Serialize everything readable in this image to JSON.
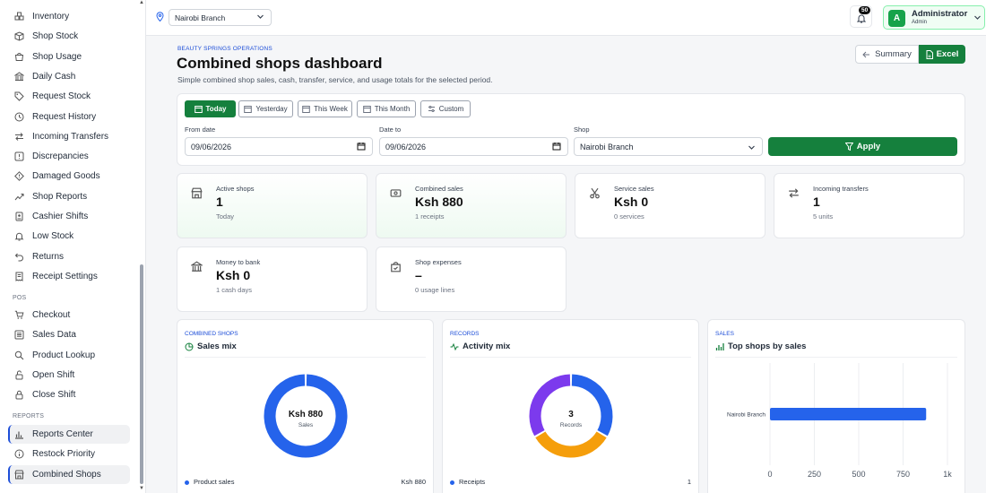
{
  "sidebar": {
    "items": [
      {
        "label": "Inventory",
        "icon": "boxes-icon",
        "name": "sidebar-item-inventory"
      },
      {
        "label": "Shop Stock",
        "icon": "box-icon",
        "name": "sidebar-item-shop-stock"
      },
      {
        "label": "Shop Usage",
        "icon": "bag-icon",
        "name": "sidebar-item-shop-usage"
      },
      {
        "label": "Daily Cash",
        "icon": "bank-icon",
        "name": "sidebar-item-daily-cash"
      },
      {
        "label": "Request Stock",
        "icon": "tag-icon",
        "name": "sidebar-item-request-stock"
      },
      {
        "label": "Request History",
        "icon": "clock-icon",
        "name": "sidebar-item-request-history"
      },
      {
        "label": "Incoming Transfers",
        "icon": "transfer-in-icon",
        "name": "sidebar-item-incoming-transfers"
      },
      {
        "label": "Discrepancies",
        "icon": "alert-icon",
        "name": "sidebar-item-discrepancies"
      },
      {
        "label": "Damaged Goods",
        "icon": "diamond-alert-icon",
        "name": "sidebar-item-damaged-goods"
      },
      {
        "label": "Shop Reports",
        "icon": "trend-icon",
        "name": "sidebar-item-shop-reports"
      },
      {
        "label": "Cashier Shifts",
        "icon": "id-badge-icon",
        "name": "sidebar-item-cashier-shifts"
      },
      {
        "label": "Low Stock",
        "icon": "bell-icon",
        "name": "sidebar-item-low-stock"
      },
      {
        "label": "Returns",
        "icon": "return-icon",
        "name": "sidebar-item-returns"
      },
      {
        "label": "Receipt Settings",
        "icon": "receipt-icon",
        "name": "sidebar-item-receipt-settings"
      }
    ],
    "pos_heading": "POS",
    "pos_items": [
      {
        "label": "Checkout",
        "icon": "cart-icon",
        "name": "sidebar-item-checkout"
      },
      {
        "label": "Sales Data",
        "icon": "list-icon",
        "name": "sidebar-item-sales-data"
      },
      {
        "label": "Product Lookup",
        "icon": "search-icon",
        "name": "sidebar-item-product-lookup"
      },
      {
        "label": "Open Shift",
        "icon": "unlock-icon",
        "name": "sidebar-item-open-shift"
      },
      {
        "label": "Close Shift",
        "icon": "lock-icon",
        "name": "sidebar-item-close-shift"
      }
    ],
    "reports_heading": "REPORTS",
    "report_items": [
      {
        "label": "Reports Center",
        "icon": "bar-chart-icon",
        "name": "sidebar-item-reports-center",
        "active": true
      },
      {
        "label": "Restock Priority",
        "icon": "info-icon",
        "name": "sidebar-item-restock-priority"
      },
      {
        "label": "Combined Shops",
        "icon": "store-icon",
        "name": "sidebar-item-combined-shops",
        "active": true
      }
    ]
  },
  "topbar": {
    "branch": "Nairobi Branch",
    "notification_count": "50",
    "user_initial": "A",
    "user_name": "Administrator",
    "user_role": "Admin"
  },
  "header": {
    "eyebrow": "BEAUTY SPRINGS OPERATIONS",
    "title": "Combined shops dashboard",
    "subtitle": "Simple combined shop sales, cash, transfer, service, and usage totals for the selected period.",
    "summary_label": "Summary",
    "excel_label": "Excel"
  },
  "filters": {
    "ranges": [
      {
        "label": "Today",
        "active": true
      },
      {
        "label": "Yesterday",
        "active": false
      },
      {
        "label": "This Week",
        "active": false
      },
      {
        "label": "This Month",
        "active": false
      },
      {
        "label": "Custom",
        "active": false
      }
    ],
    "from_label": "From date",
    "from_value": "09/06/2026",
    "to_label": "Date to",
    "to_value": "09/06/2026",
    "shop_label": "Shop",
    "shop_value": "Nairobi Branch",
    "apply_label": "Apply"
  },
  "stats": [
    {
      "label": "Active shops",
      "value": "1",
      "sub": "Today",
      "icon": "store-icon",
      "highlight": true
    },
    {
      "label": "Combined sales",
      "value": "Ksh 880",
      "sub": "1 receipts",
      "icon": "money-icon",
      "highlight": true
    },
    {
      "label": "Service sales",
      "value": "Ksh 0",
      "sub": "0 services",
      "icon": "scissors-icon",
      "highlight": false
    },
    {
      "label": "Incoming transfers",
      "value": "1",
      "sub": "5 units",
      "icon": "transfer-icon",
      "highlight": false
    },
    {
      "label": "Money to bank",
      "value": "Ksh 0",
      "sub": "1 cash days",
      "icon": "bank-icon",
      "highlight": false
    },
    {
      "label": "Shop expenses",
      "value": "–",
      "sub": "0 usage lines",
      "icon": "bag-check-icon",
      "highlight": false
    }
  ],
  "charts": {
    "sales_mix": {
      "eyebrow": "COMBINED SHOPS",
      "title": "Sales mix",
      "center_value": "Ksh 880",
      "center_label": "Sales",
      "legend_label": "Product sales",
      "legend_value": "Ksh 880",
      "color": "#2563eb"
    },
    "activity_mix": {
      "eyebrow": "RECORDS",
      "title": "Activity mix",
      "center_value": "3",
      "center_label": "Records",
      "legend_label": "Receipts",
      "legend_value": "1",
      "colors": [
        "#2563eb",
        "#f59e0b",
        "#7c3aed"
      ]
    },
    "top_shops": {
      "eyebrow": "SALES",
      "title": "Top shops by sales",
      "color": "#2563eb"
    }
  },
  "chart_data": [
    {
      "type": "pie",
      "title": "Sales mix",
      "categories": [
        "Product sales"
      ],
      "values": [
        880
      ]
    },
    {
      "type": "pie",
      "title": "Activity mix",
      "categories": [
        "Receipts",
        "",
        ""
      ],
      "values": [
        1,
        1,
        1
      ]
    },
    {
      "type": "bar",
      "title": "Top shops by sales",
      "orientation": "horizontal",
      "categories": [
        "Nairobi Branch"
      ],
      "values": [
        880
      ],
      "xlim": [
        0,
        1000
      ],
      "xticks": [
        "0",
        "250",
        "500",
        "750",
        "1k"
      ],
      "grid": true
    }
  ]
}
